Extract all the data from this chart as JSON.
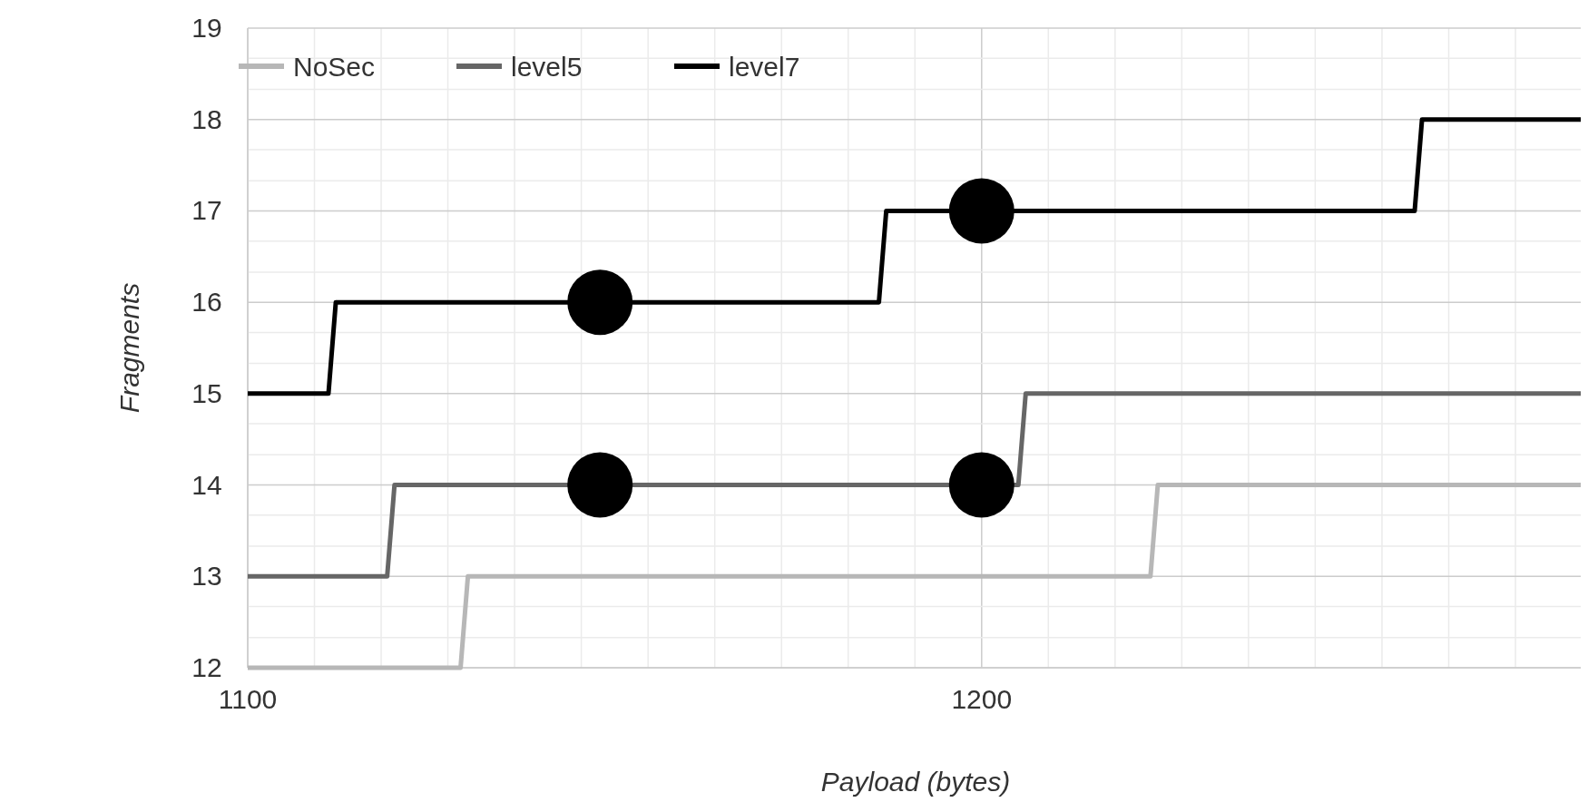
{
  "chart_data": {
    "type": "line",
    "xlabel": "Payload (bytes)",
    "ylabel": "Fragments",
    "xlim": [
      1100,
      1282
    ],
    "ylim": [
      12,
      19
    ],
    "xticks": [
      1100,
      {
        "value": 1109.09,
        "label": null
      },
      {
        "value": 1118.18,
        "label": null
      },
      {
        "value": 1127.27,
        "label": null
      },
      {
        "value": 1136.36,
        "label": null
      },
      {
        "value": 1145.45,
        "label": null
      },
      {
        "value": 1154.55,
        "label": null
      },
      {
        "value": 1163.64,
        "label": null
      },
      {
        "value": 1172.73,
        "label": null
      },
      {
        "value": 1181.82,
        "label": null
      },
      {
        "value": 1190.91,
        "label": null
      },
      1200,
      {
        "value": 1209.09,
        "label": null
      },
      {
        "value": 1218.18,
        "label": null
      },
      {
        "value": 1227.27,
        "label": null
      },
      {
        "value": 1236.36,
        "label": null
      },
      {
        "value": 1245.45,
        "label": null
      },
      {
        "value": 1254.55,
        "label": null
      },
      {
        "value": 1263.64,
        "label": null
      },
      {
        "value": 1272.73,
        "label": null
      }
    ],
    "yticks": [
      12,
      {
        "value": 12.33,
        "label": null
      },
      {
        "value": 12.67,
        "label": null
      },
      13,
      {
        "value": 13.33,
        "label": null
      },
      {
        "value": 13.67,
        "label": null
      },
      14,
      {
        "value": 14.33,
        "label": null
      },
      {
        "value": 14.67,
        "label": null
      },
      15,
      {
        "value": 15.33,
        "label": null
      },
      {
        "value": 15.67,
        "label": null
      },
      16,
      {
        "value": 16.33,
        "label": null
      },
      {
        "value": 16.67,
        "label": null
      },
      17,
      {
        "value": 17.33,
        "label": null
      },
      {
        "value": 17.67,
        "label": null
      },
      18,
      {
        "value": 18.33,
        "label": null
      },
      {
        "value": 18.67,
        "label": null
      },
      19
    ],
    "grid": true,
    "legend": "top left",
    "marker": "none",
    "line_style": "solid",
    "series": [
      {
        "name": "NoSec",
        "color": "#b7b7b7",
        "x": [
          1100,
          1129,
          1130,
          1223,
          1224,
          1282
        ],
        "values": [
          12,
          12,
          13,
          13,
          14,
          14
        ]
      },
      {
        "name": "level5",
        "color": "#666666",
        "x": [
          1100,
          1119,
          1120,
          1205,
          1206,
          1282
        ],
        "values": [
          13,
          13,
          14,
          14,
          15,
          15
        ]
      },
      {
        "name": "level7",
        "color": "#000000",
        "x": [
          1100,
          1111,
          1112,
          1186,
          1187,
          1259,
          1260,
          1282
        ],
        "values": [
          15,
          15,
          16,
          16,
          17,
          17,
          18,
          18
        ]
      },
      {
        "type": "scatter",
        "color": "#000000",
        "marker": "circle",
        "x": [
          1148,
          1148,
          1200,
          1200
        ],
        "values": [
          16,
          14,
          17,
          14
        ]
      }
    ]
  }
}
